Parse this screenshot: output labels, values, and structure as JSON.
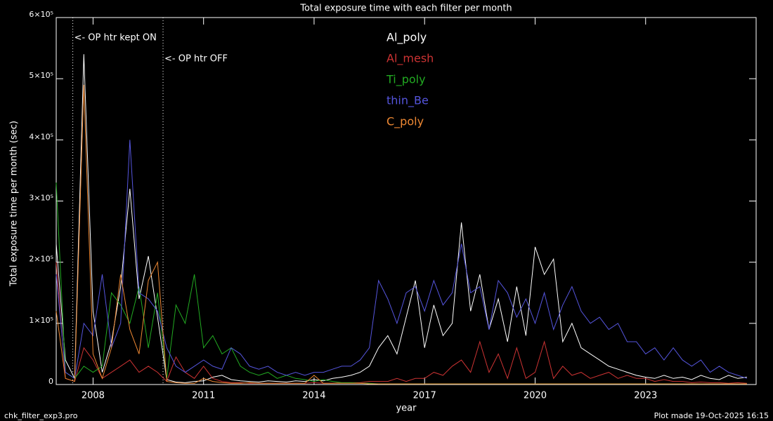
{
  "chart_data": {
    "type": "line",
    "title": "Total exposure time with each filter per month",
    "xlabel": "year",
    "ylabel": "Total exposure time per month (sec)",
    "footer_left": "chk_filter_exp3.pro",
    "footer_right": "Plot made 19-Oct-2025 16:15",
    "xlim": [
      2007.0,
      2026.0
    ],
    "xticks": [
      2008,
      2011,
      2014,
      2017,
      2020,
      2023
    ],
    "ylim": [
      0,
      600000
    ],
    "yticks": [
      0,
      {
        "value": 100000,
        "label": "1×10⁵"
      },
      {
        "value": 200000,
        "label": "2×10⁵"
      },
      {
        "value": 300000,
        "label": "3×10⁵"
      },
      {
        "value": 400000,
        "label": "4×10⁵"
      },
      {
        "value": 500000,
        "label": "5×10⁵"
      },
      {
        "value": 600000,
        "label": "6×10⁵"
      }
    ],
    "annotations": [
      {
        "text": "<- OP htr kept ON",
        "x": 2007.45
      },
      {
        "text": "<- OP htr OFF",
        "x": 2009.9
      }
    ],
    "x": [
      2007.0,
      2007.25,
      2007.5,
      2007.75,
      2008.0,
      2008.25,
      2008.5,
      2008.75,
      2009.0,
      2009.25,
      2009.5,
      2009.75,
      2010.0,
      2010.25,
      2010.5,
      2010.75,
      2011.0,
      2011.25,
      2011.5,
      2011.75,
      2012.0,
      2012.25,
      2012.5,
      2012.75,
      2013.0,
      2013.25,
      2013.5,
      2013.75,
      2014.0,
      2014.25,
      2014.5,
      2014.75,
      2015.0,
      2015.25,
      2015.5,
      2015.75,
      2016.0,
      2016.25,
      2016.5,
      2016.75,
      2017.0,
      2017.25,
      2017.5,
      2017.75,
      2018.0,
      2018.25,
      2018.5,
      2018.75,
      2019.0,
      2019.25,
      2019.5,
      2019.75,
      2020.0,
      2020.25,
      2020.5,
      2020.75,
      2021.0,
      2021.25,
      2021.5,
      2021.75,
      2022.0,
      2022.25,
      2022.5,
      2022.75,
      2023.0,
      2023.25,
      2023.5,
      2023.75,
      2024.0,
      2024.25,
      2024.5,
      2024.75,
      2025.0,
      2025.25,
      2025.5,
      2025.75
    ],
    "series": [
      {
        "name": "Al_poly",
        "color": "#ffffff",
        "values": [
          230000,
          40000,
          10000,
          540000,
          120000,
          20000,
          70000,
          160000,
          320000,
          140000,
          210000,
          110000,
          8000,
          4000,
          3000,
          5000,
          6000,
          12000,
          15000,
          8000,
          6000,
          5000,
          4000,
          6000,
          5000,
          4000,
          6000,
          5000,
          8000,
          6000,
          10000,
          12000,
          15000,
          20000,
          30000,
          60000,
          80000,
          50000,
          110000,
          170000,
          60000,
          130000,
          80000,
          100000,
          265000,
          120000,
          180000,
          90000,
          140000,
          70000,
          160000,
          80000,
          225000,
          180000,
          205000,
          70000,
          100000,
          60000,
          50000,
          40000,
          30000,
          25000,
          20000,
          15000,
          12000,
          10000,
          15000,
          10000,
          12000,
          8000,
          15000,
          10000,
          8000,
          15000,
          10000,
          12000
        ]
      },
      {
        "name": "Al_mesh",
        "color": "#cc3333",
        "values": [
          200000,
          10000,
          5000,
          60000,
          40000,
          10000,
          20000,
          30000,
          40000,
          20000,
          30000,
          20000,
          5000,
          45000,
          20000,
          10000,
          30000,
          10000,
          5000,
          3000,
          3000,
          2000,
          2000,
          2000,
          2000,
          2000,
          2000,
          2000,
          3000,
          2000,
          2000,
          3000,
          3000,
          3000,
          5000,
          5000,
          5000,
          10000,
          5000,
          10000,
          10000,
          20000,
          15000,
          30000,
          40000,
          20000,
          70000,
          20000,
          50000,
          10000,
          60000,
          10000,
          20000,
          70000,
          10000,
          30000,
          15000,
          20000,
          10000,
          15000,
          20000,
          10000,
          15000,
          10000,
          10000,
          5000,
          8000,
          5000,
          5000,
          3000,
          4000,
          3000,
          3000,
          2000,
          3000,
          2000
        ]
      },
      {
        "name": "Ti_poly",
        "color": "#22aa22",
        "values": [
          330000,
          20000,
          10000,
          30000,
          20000,
          30000,
          150000,
          130000,
          100000,
          160000,
          60000,
          150000,
          10000,
          130000,
          100000,
          180000,
          60000,
          80000,
          50000,
          60000,
          30000,
          20000,
          15000,
          20000,
          10000,
          15000,
          10000,
          8000,
          5000,
          8000,
          5000,
          3000,
          3000,
          2000,
          2000,
          1000,
          1000,
          1000,
          1000,
          1000,
          1000,
          1000,
          1000,
          1000,
          1000,
          1000,
          1000,
          1000,
          1000,
          1000,
          1000,
          1000,
          1000,
          1000,
          1000,
          1000,
          1000,
          1000,
          1000,
          1000,
          1000,
          1000,
          1000,
          1000,
          1000,
          1000,
          1000,
          1000,
          1000,
          1000,
          1000,
          1000,
          1000,
          1000,
          1000,
          1000
        ]
      },
      {
        "name": "thin_Be",
        "color": "#5555dd",
        "values": [
          180000,
          20000,
          10000,
          100000,
          80000,
          180000,
          60000,
          100000,
          400000,
          150000,
          140000,
          120000,
          60000,
          30000,
          20000,
          30000,
          40000,
          30000,
          25000,
          60000,
          50000,
          30000,
          25000,
          30000,
          20000,
          15000,
          20000,
          15000,
          20000,
          20000,
          25000,
          30000,
          30000,
          40000,
          60000,
          170000,
          140000,
          100000,
          150000,
          160000,
          120000,
          170000,
          130000,
          150000,
          230000,
          150000,
          160000,
          90000,
          170000,
          150000,
          110000,
          140000,
          100000,
          150000,
          90000,
          130000,
          160000,
          120000,
          100000,
          110000,
          90000,
          100000,
          70000,
          70000,
          50000,
          60000,
          40000,
          60000,
          40000,
          30000,
          40000,
          20000,
          30000,
          20000,
          15000,
          10000
        ]
      },
      {
        "name": "C_poly",
        "color": "#ee8833",
        "values": [
          120000,
          10000,
          5000,
          490000,
          50000,
          10000,
          60000,
          180000,
          90000,
          50000,
          170000,
          200000,
          5000,
          3000,
          2000,
          2000,
          10000,
          5000,
          3000,
          2000,
          2000,
          3000,
          2000,
          2000,
          2000,
          2000,
          2000,
          2000,
          15000,
          2000,
          2000,
          2000,
          2000,
          2000,
          1000,
          1000,
          1000,
          1000,
          1000,
          1000,
          1000,
          1000,
          1000,
          1000,
          1000,
          1000,
          1000,
          1000,
          1000,
          1000,
          1000,
          1000,
          1000,
          1000,
          1000,
          1000,
          1000,
          1000,
          1000,
          1000,
          1000,
          1000,
          1000,
          1000,
          1000,
          1000,
          1000,
          1000,
          1000,
          1000,
          1000,
          1000,
          1000,
          1000,
          1000,
          1000
        ]
      }
    ]
  }
}
